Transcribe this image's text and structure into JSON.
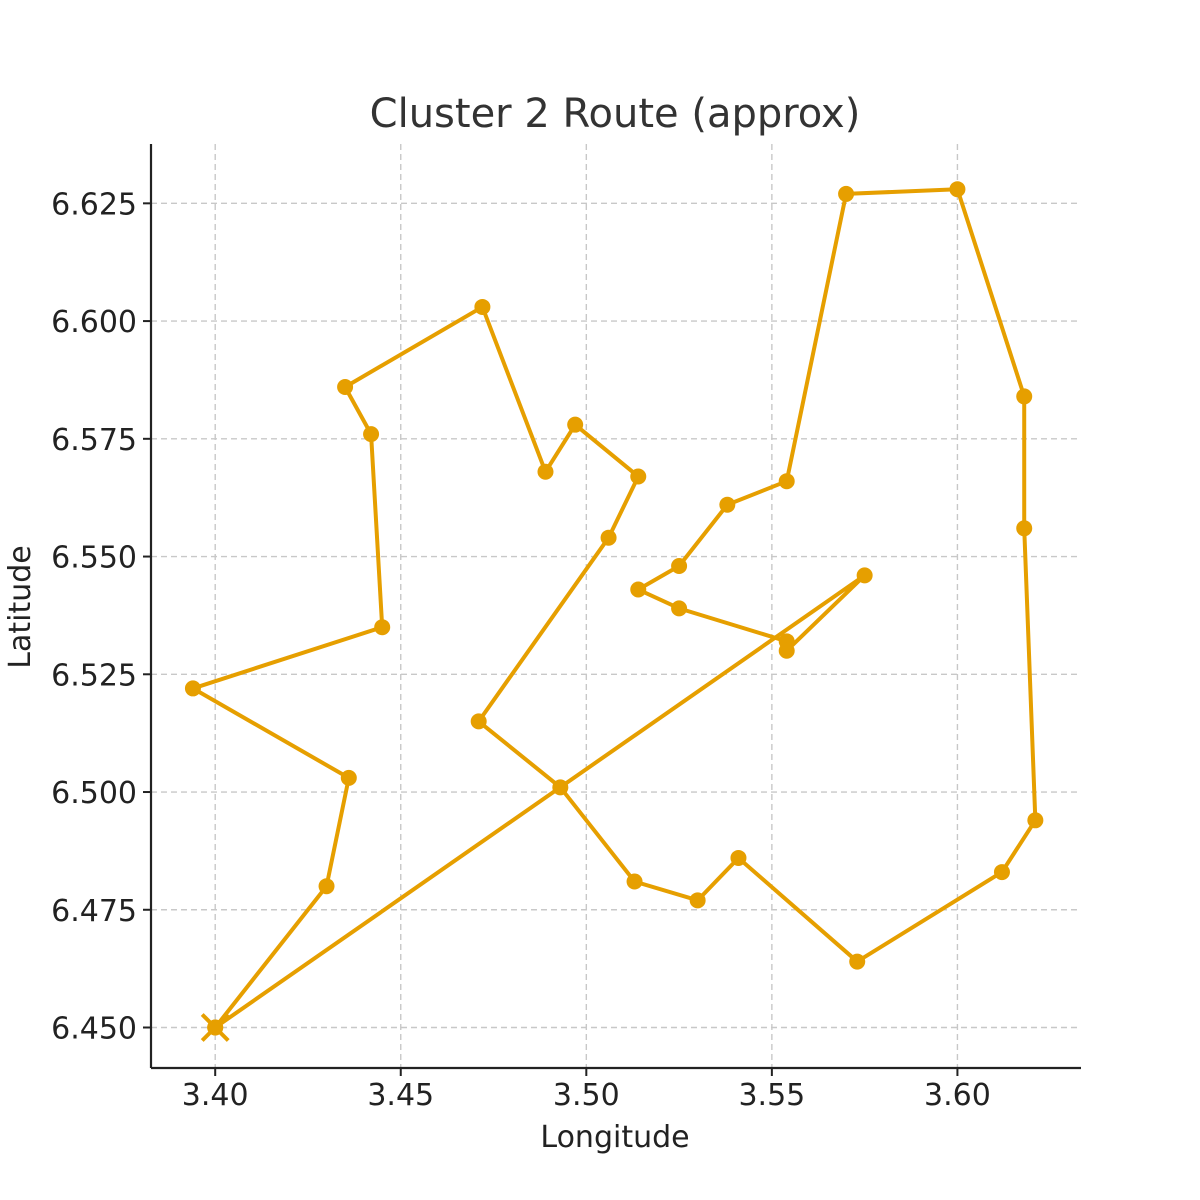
{
  "chart_data": {
    "type": "line",
    "title": "Cluster 2 Route (approx)",
    "xlabel": "Longitude",
    "ylabel": "Latitude",
    "xlim": [
      3.3827,
      3.6333
    ],
    "ylim": [
      6.4414,
      6.6376
    ],
    "x_ticks": [
      3.4,
      3.45,
      3.5,
      3.55,
      3.6
    ],
    "x_tick_labels": [
      "3.40",
      "3.45",
      "3.50",
      "3.55",
      "3.60"
    ],
    "y_ticks": [
      6.45,
      6.475,
      6.5,
      6.525,
      6.55,
      6.575,
      6.6,
      6.625
    ],
    "y_tick_labels": [
      "6.450",
      "6.475",
      "6.500",
      "6.525",
      "6.550",
      "6.575",
      "6.600",
      "6.625"
    ],
    "grid": true,
    "color": "#E69F00",
    "start_marker": "x",
    "series": [
      {
        "x": [
          3.4,
          3.43,
          3.436,
          3.394,
          3.445,
          3.442,
          3.435,
          3.472,
          3.489,
          3.497,
          3.514,
          3.506,
          3.471,
          3.493,
          3.513,
          3.53,
          3.541,
          3.573,
          3.612,
          3.621,
          3.618,
          3.618,
          3.6,
          3.57,
          3.554,
          3.538,
          3.525,
          3.514,
          3.525,
          3.554,
          3.554,
          3.575,
          3.4
        ],
        "y": [
          6.45,
          6.48,
          6.503,
          6.522,
          6.535,
          6.576,
          6.586,
          6.603,
          6.568,
          6.578,
          6.567,
          6.554,
          6.515,
          6.501,
          6.481,
          6.477,
          6.486,
          6.464,
          6.483,
          6.494,
          6.556,
          6.584,
          6.628,
          6.627,
          6.566,
          6.561,
          6.548,
          6.543,
          6.539,
          6.532,
          6.53,
          6.546,
          6.45
        ]
      }
    ]
  }
}
